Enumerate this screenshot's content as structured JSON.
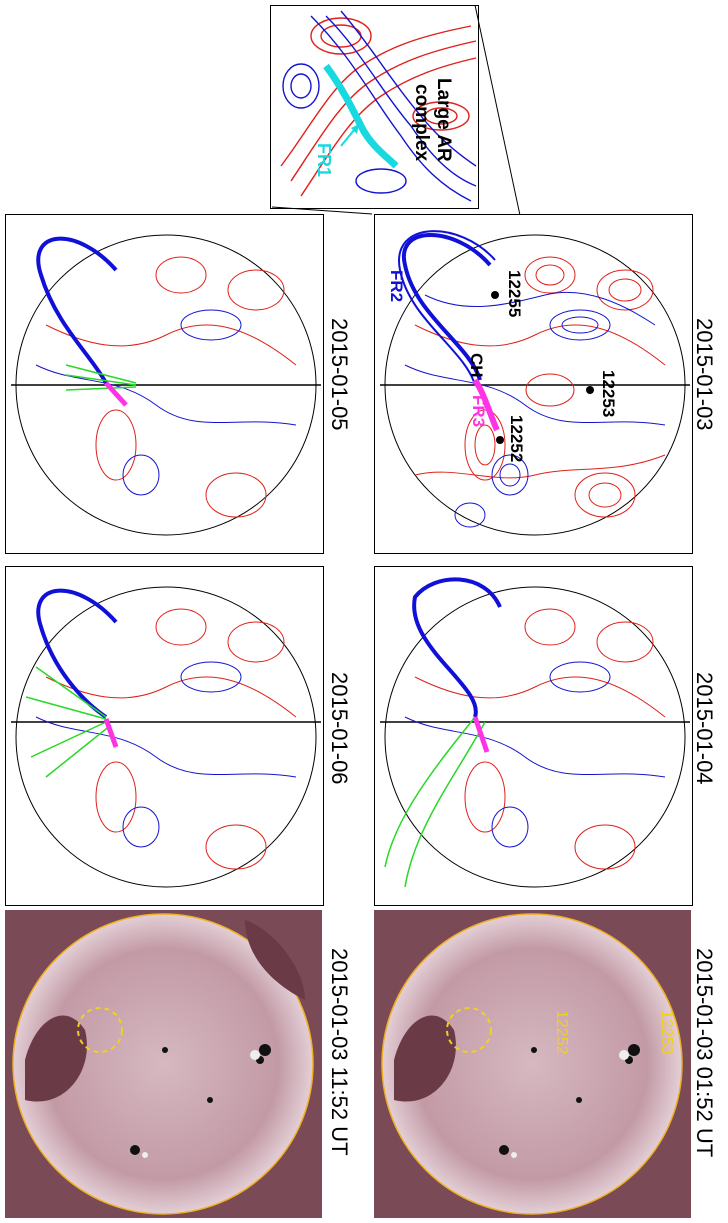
{
  "figure": {
    "panels": [
      {
        "id": "p0103",
        "date": "2015-01-03"
      },
      {
        "id": "p0104",
        "date": "2015-01-04"
      },
      {
        "id": "p0105",
        "date": "2015-01-05"
      },
      {
        "id": "p0106",
        "date": "2015-01-06"
      }
    ],
    "euv": [
      {
        "id": "euv1",
        "timestamp": "2015-01-03 01:52 UT"
      },
      {
        "id": "euv2",
        "timestamp": "2015-01-03 11:52 UT"
      }
    ],
    "labels": {
      "large_ar": "Large AR",
      "complex": "complex",
      "fr1": "FR1",
      "fr2": "FR2",
      "fr3": "FR3",
      "ch": "CH",
      "ar12253": "12253",
      "ar12252": "12252",
      "ar12255": "12255"
    },
    "colors": {
      "positive_polarity": "#e0201a",
      "negative_polarity": "#1414d0",
      "fr1": "#18d8e0",
      "fr2": "#1010d8",
      "fr3": "#ff33e6",
      "open_field": "#28d828",
      "euv_limb": "#f0b020",
      "euv_label": "#f0d020"
    }
  }
}
